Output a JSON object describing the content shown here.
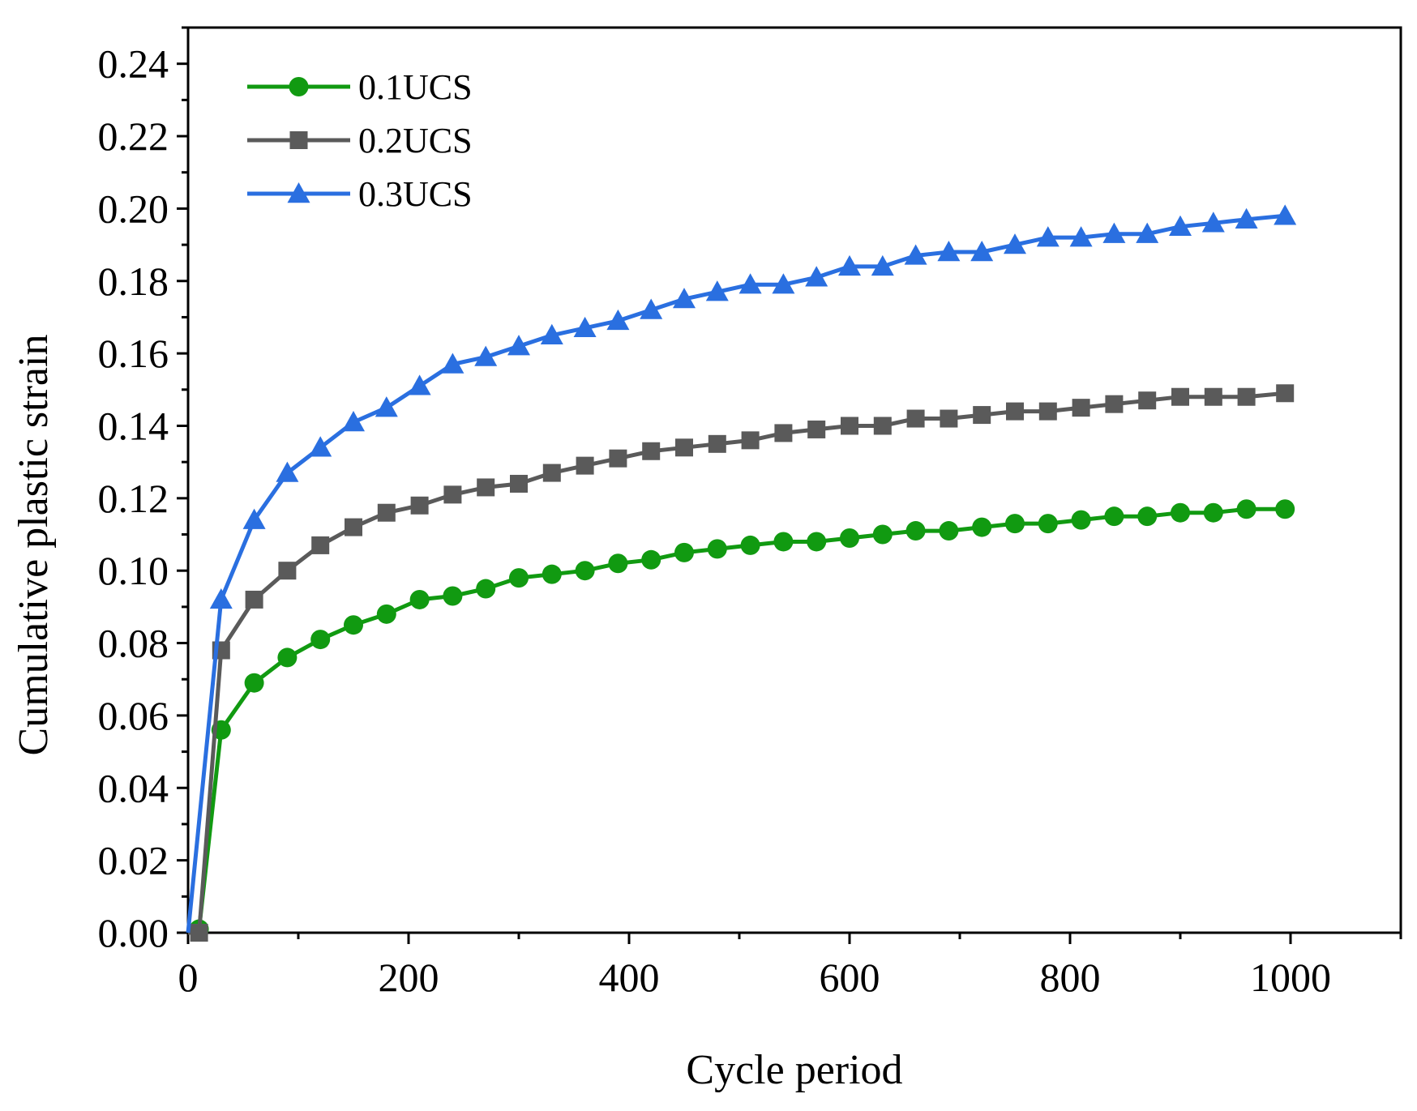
{
  "chart_data": {
    "type": "line",
    "title": "",
    "xlabel": "Cycle period",
    "ylabel": "Cumulative plastic strain",
    "xlim": [
      0,
      1100
    ],
    "ylim": [
      0,
      0.25
    ],
    "xticks": [
      0,
      200,
      400,
      600,
      800,
      1000
    ],
    "xtick_labels": [
      "0",
      "200",
      "400",
      "600",
      "800",
      "1000"
    ],
    "yticks": [
      0,
      0.02,
      0.04,
      0.06,
      0.08,
      0.1,
      0.12,
      0.14,
      0.16,
      0.18,
      0.2,
      0.22,
      0.24
    ],
    "ytick_labels": [
      "0.00",
      "0.02",
      "0.04",
      "0.06",
      "0.08",
      "0.10",
      "0.12",
      "0.14",
      "0.16",
      "0.18",
      "0.20",
      "0.22",
      "0.24"
    ],
    "legend_position": "top-left",
    "grid": false,
    "series": [
      {
        "name": "0.1UCS",
        "color": "#119a11",
        "marker": "circle",
        "x": [
          0,
          10,
          30,
          60,
          90,
          120,
          150,
          180,
          210,
          240,
          270,
          300,
          330,
          360,
          390,
          420,
          450,
          480,
          510,
          540,
          570,
          600,
          630,
          660,
          690,
          720,
          750,
          780,
          810,
          840,
          870,
          900,
          930,
          960,
          995
        ],
        "y": [
          0,
          0.001,
          0.056,
          0.069,
          0.076,
          0.081,
          0.085,
          0.088,
          0.092,
          0.093,
          0.095,
          0.098,
          0.099,
          0.1,
          0.102,
          0.103,
          0.105,
          0.106,
          0.107,
          0.108,
          0.108,
          0.109,
          0.11,
          0.111,
          0.111,
          0.112,
          0.113,
          0.113,
          0.114,
          0.115,
          0.115,
          0.116,
          0.116,
          0.117,
          0.117
        ]
      },
      {
        "name": "0.2UCS",
        "color": "#5a5a5a",
        "marker": "square",
        "x": [
          0,
          10,
          30,
          60,
          90,
          120,
          150,
          180,
          210,
          240,
          270,
          300,
          330,
          360,
          390,
          420,
          450,
          480,
          510,
          540,
          570,
          600,
          630,
          660,
          690,
          720,
          750,
          780,
          810,
          840,
          870,
          900,
          930,
          960,
          995
        ],
        "y": [
          0,
          0.0,
          0.078,
          0.092,
          0.1,
          0.107,
          0.112,
          0.116,
          0.118,
          0.121,
          0.123,
          0.124,
          0.127,
          0.129,
          0.131,
          0.133,
          0.134,
          0.135,
          0.136,
          0.138,
          0.139,
          0.14,
          0.14,
          0.142,
          0.142,
          0.143,
          0.144,
          0.144,
          0.145,
          0.146,
          0.147,
          0.148,
          0.148,
          0.148,
          0.149
        ]
      },
      {
        "name": "0.3UCS",
        "color": "#2a6fe0",
        "marker": "triangle",
        "x": [
          0,
          30,
          60,
          90,
          120,
          150,
          180,
          210,
          240,
          270,
          300,
          330,
          360,
          390,
          420,
          450,
          480,
          510,
          540,
          570,
          600,
          630,
          660,
          690,
          720,
          750,
          780,
          810,
          840,
          870,
          900,
          930,
          960,
          995
        ],
        "y": [
          0,
          0.092,
          0.114,
          0.127,
          0.134,
          0.141,
          0.145,
          0.151,
          0.157,
          0.159,
          0.162,
          0.165,
          0.167,
          0.169,
          0.172,
          0.175,
          0.177,
          0.179,
          0.179,
          0.181,
          0.184,
          0.184,
          0.187,
          0.188,
          0.188,
          0.19,
          0.192,
          0.192,
          0.193,
          0.193,
          0.195,
          0.196,
          0.197,
          0.198
        ]
      }
    ]
  }
}
